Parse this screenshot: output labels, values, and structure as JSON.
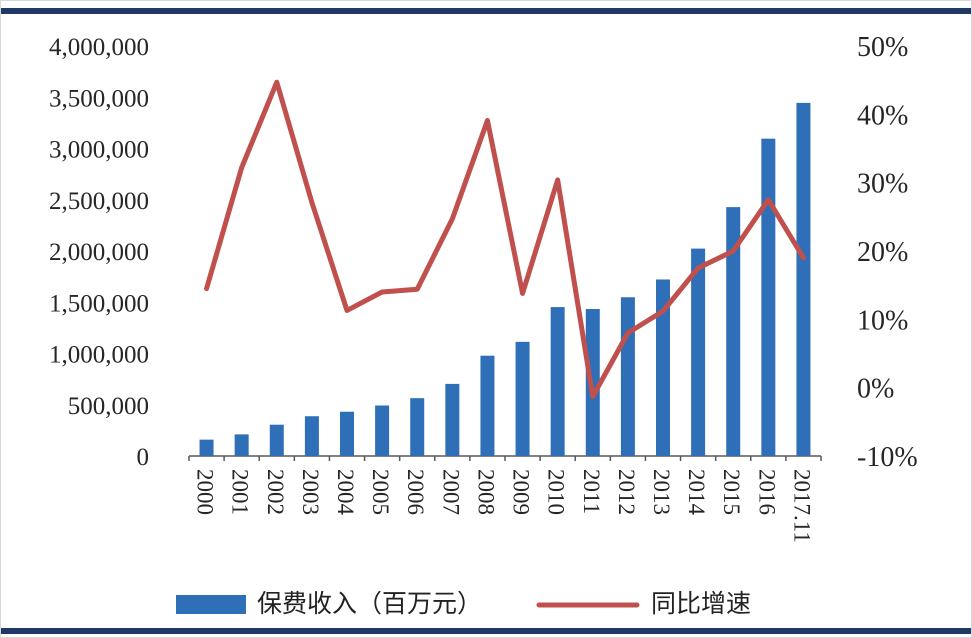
{
  "page": {
    "divider_color": "#1F3864",
    "background": "#FFFFFF"
  },
  "chart_data": {
    "type": "bar",
    "subtype": "bar+line combo, dual axis",
    "title": "",
    "xlabel": "",
    "ylabel_left": "",
    "ylabel_right": "",
    "grid": false,
    "legend_position": "bottom",
    "categories": [
      "2000",
      "2001",
      "2002",
      "2003",
      "2004",
      "2005",
      "2006",
      "2007",
      "2008",
      "2009",
      "2010",
      "2011",
      "2012",
      "2013",
      "2014",
      "2015",
      "2016",
      "2017.11"
    ],
    "series": [
      {
        "name": "保费收入（百万元）",
        "type": "bar",
        "axis": "left",
        "color": "#2E6FB7",
        "values": [
          159600,
          210900,
          305300,
          388000,
          431800,
          492700,
          564100,
          703600,
          978400,
          1113700,
          1452800,
          1433900,
          1548800,
          1722200,
          2023500,
          2428200,
          3095900,
          3445000
        ]
      },
      {
        "name": "同比增速",
        "type": "line",
        "axis": "right",
        "color": "#C0504D",
        "values": [
          14.5,
          32.2,
          44.7,
          27.1,
          11.3,
          14.0,
          14.4,
          24.7,
          39.1,
          13.8,
          30.4,
          -1.3,
          8.0,
          11.2,
          17.5,
          20.0,
          27.5,
          19.0
        ]
      }
    ],
    "left_axis": {
      "min": 0,
      "max": 4000000,
      "step": 500000,
      "tick_labels": [
        "4,000,000",
        "3,500,000",
        "3,000,000",
        "2,500,000",
        "2,000,000",
        "1,500,000",
        "1,000,000",
        "500,000",
        "0"
      ]
    },
    "right_axis": {
      "min": -10,
      "max": 50,
      "step": 10,
      "tick_labels": [
        "50%",
        "40%",
        "30%",
        "20%",
        "10%",
        "0%",
        "-10%"
      ]
    },
    "axis_text_color": "#262626",
    "axis_line_color": "#595959"
  }
}
